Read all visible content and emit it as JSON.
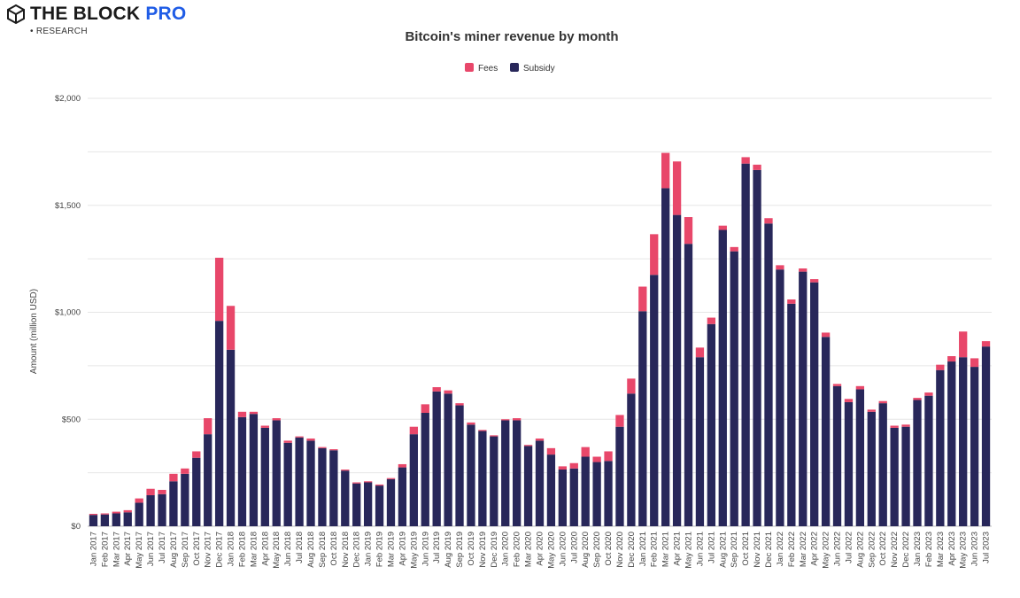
{
  "brand": {
    "name": "THE BLOCK",
    "accent": "PRO",
    "sub": "• RESEARCH"
  },
  "colors": {
    "fees": "#e8476a",
    "subsidy": "#28275a",
    "grid": "#e6e6e6",
    "brand_accent": "#1f5ce6"
  },
  "chart_data": {
    "type": "bar",
    "stacked": true,
    "title": "Bitcoin's miner revenue by month",
    "ylabel": "Amount (million USD)",
    "xlabel": "",
    "ylim": [
      0,
      2000
    ],
    "yticks": [
      0,
      500,
      1000,
      1500,
      2000
    ],
    "ytick_labels": [
      "$0",
      "$500",
      "$1,000",
      "$1,500",
      "$2,000"
    ],
    "grid": true,
    "legend_position": "top-center",
    "categories": [
      "Jan 2017",
      "Feb 2017",
      "Mar 2017",
      "Apr 2017",
      "May 2017",
      "Jun 2017",
      "Jul 2017",
      "Aug 2017",
      "Sep 2017",
      "Oct 2017",
      "Nov 2017",
      "Dec 2017",
      "Jan 2018",
      "Feb 2018",
      "Mar 2018",
      "Apr 2018",
      "May 2018",
      "Jun 2018",
      "Jul 2018",
      "Aug 2018",
      "Sep 2018",
      "Oct 2018",
      "Nov 2018",
      "Dec 2018",
      "Jan 2019",
      "Feb 2019",
      "Mar 2019",
      "Apr 2019",
      "May 2019",
      "Jun 2019",
      "Jul 2019",
      "Aug 2019",
      "Sep 2019",
      "Oct 2019",
      "Nov 2019",
      "Dec 2019",
      "Jan 2020",
      "Feb 2020",
      "Mar 2020",
      "Apr 2020",
      "May 2020",
      "Jun 2020",
      "Jul 2020",
      "Aug 2020",
      "Sep 2020",
      "Oct 2020",
      "Nov 2020",
      "Dec 2020",
      "Jan 2021",
      "Feb 2021",
      "Mar 2021",
      "Apr 2021",
      "May 2021",
      "Jun 2021",
      "Jul 2021",
      "Aug 2021",
      "Sep 2021",
      "Oct 2021",
      "Nov 2021",
      "Dec 2021",
      "Jan 2022",
      "Feb 2022",
      "Mar 2022",
      "Apr 2022",
      "May 2022",
      "Jun 2022",
      "Jul 2022",
      "Aug 2022",
      "Sep 2022",
      "Oct 2022",
      "Nov 2022",
      "Dec 2022",
      "Jan 2023",
      "Feb 2023",
      "Mar 2023",
      "Apr 2023",
      "May 2023",
      "Jun 2023",
      "Jul 2023"
    ],
    "series": [
      {
        "name": "Subsidy",
        "values": [
          53,
          55,
          60,
          65,
          110,
          145,
          150,
          210,
          245,
          320,
          430,
          960,
          825,
          510,
          525,
          460,
          495,
          390,
          415,
          400,
          365,
          355,
          260,
          200,
          205,
          190,
          220,
          275,
          430,
          530,
          630,
          620,
          565,
          475,
          445,
          420,
          495,
          495,
          375,
          400,
          335,
          265,
          270,
          325,
          300,
          305,
          465,
          620,
          1005,
          1175,
          1580,
          1455,
          1320,
          790,
          945,
          1385,
          1285,
          1695,
          1665,
          1415,
          1200,
          1040,
          1190,
          1140,
          885,
          655,
          580,
          640,
          535,
          575,
          460,
          465,
          590,
          610,
          730,
          770,
          790,
          745,
          840
        ]
      },
      {
        "name": "Fees",
        "values": [
          5,
          5,
          8,
          10,
          20,
          30,
          20,
          35,
          25,
          30,
          75,
          295,
          205,
          25,
          10,
          10,
          10,
          10,
          5,
          10,
          5,
          5,
          5,
          5,
          5,
          5,
          5,
          15,
          35,
          40,
          20,
          15,
          10,
          10,
          5,
          5,
          5,
          10,
          5,
          10,
          30,
          15,
          25,
          45,
          25,
          45,
          55,
          70,
          115,
          190,
          165,
          250,
          125,
          45,
          30,
          20,
          20,
          30,
          25,
          25,
          20,
          20,
          15,
          15,
          20,
          10,
          15,
          15,
          10,
          10,
          10,
          10,
          10,
          15,
          25,
          25,
          120,
          40,
          25
        ]
      }
    ]
  }
}
